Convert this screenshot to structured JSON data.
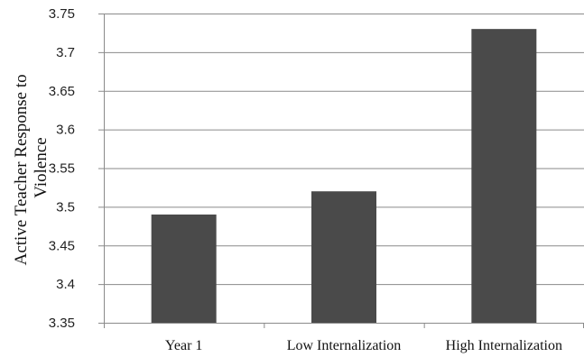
{
  "chart_data": {
    "type": "bar",
    "categories": [
      "Year 1",
      "Low Internalization",
      "High Internalization"
    ],
    "values": [
      3.49,
      3.52,
      3.73
    ],
    "ylabel_lines": [
      "Active Teacher Response to",
      "Violence"
    ],
    "ylim": [
      3.35,
      3.75
    ],
    "yticks": [
      "3.35",
      "3.4",
      "3.45",
      "3.5",
      "3.55",
      "3.6",
      "3.65",
      "3.7",
      "3.75"
    ],
    "grid": true,
    "bar_color": "#4a4a4a",
    "legend": "none"
  }
}
